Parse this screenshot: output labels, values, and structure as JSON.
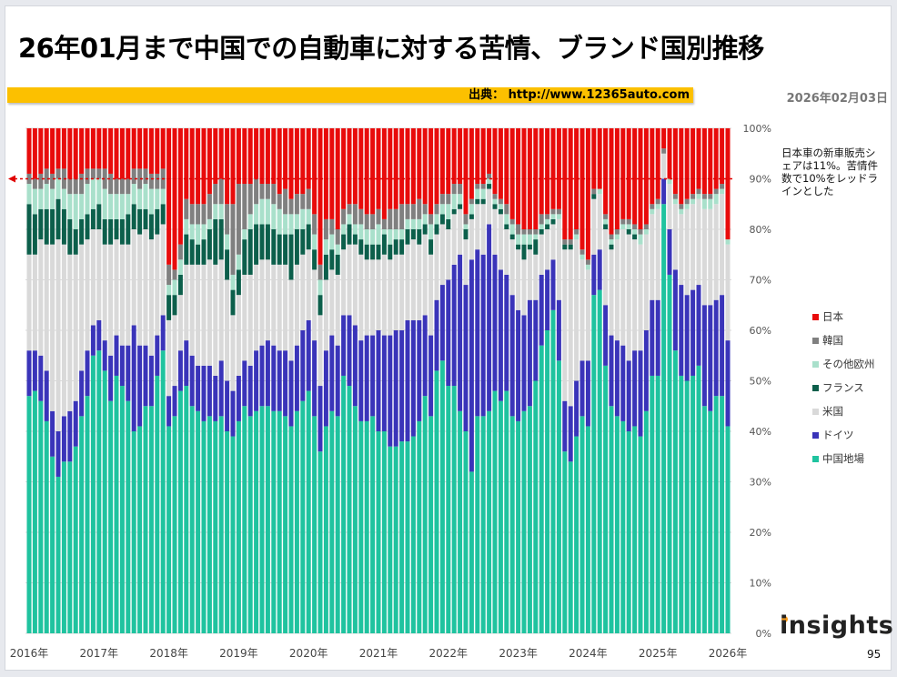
{
  "title": "26年01月まで中国での自動車に対する苦情、ブランド国別推移",
  "source": "出典： http://www.12365auto.com",
  "date": "2026年02月03日",
  "note": "日本車の新車販売シェアは11%。苦情件数で10%をレッドラインとした",
  "page_number": "95",
  "logo_text": "insights",
  "chart_data": {
    "type": "bar",
    "stacked": true,
    "normalized": true,
    "title": "26年01月まで中国での自動車に対する苦情、ブランド国別推移",
    "xlabel": "",
    "ylabel": "",
    "ylim": [
      0,
      100
    ],
    "grid": true,
    "legend_position": "right",
    "period": "2016-01 to 2026-01 (monthly)",
    "x_tick_labels": [
      "2016年",
      "2017年",
      "2018年",
      "2019年",
      "2020年",
      "2021年",
      "2022年",
      "2023年",
      "2024年",
      "2025年",
      "2026年"
    ],
    "y_tick_labels": [
      "0%",
      "10%",
      "20%",
      "30%",
      "40%",
      "50%",
      "60%",
      "70%",
      "80%",
      "90%",
      "100%"
    ],
    "reference_line": {
      "value": 90,
      "color": "#e00000",
      "style": "dashed"
    },
    "series": [
      {
        "name": "中国地場",
        "color": "#1fc39f",
        "values": [
          47,
          48,
          46,
          42,
          35,
          31,
          34,
          34,
          37,
          43,
          47,
          55,
          56,
          52,
          46,
          51,
          49,
          46,
          40,
          41,
          45,
          45,
          51,
          56,
          41,
          43,
          48,
          49,
          45,
          44,
          42,
          43,
          42,
          43,
          40,
          39,
          42,
          45,
          43,
          44,
          45,
          45,
          44,
          44,
          43,
          41,
          44,
          46,
          48,
          43,
          36,
          41,
          44,
          43,
          51,
          49,
          45,
          42,
          42,
          43,
          40,
          40,
          37,
          37,
          38,
          38,
          39,
          42,
          47,
          43,
          52,
          54,
          49,
          49,
          44,
          40,
          32,
          43,
          43,
          44,
          48,
          46,
          48,
          43,
          42,
          44,
          45,
          50,
          57,
          60,
          64,
          54,
          36,
          34,
          39,
          43,
          41,
          67,
          68,
          53,
          45,
          43,
          42,
          40,
          41,
          39,
          44,
          51,
          51,
          85,
          71,
          56,
          51,
          50,
          51,
          53,
          45,
          44,
          47,
          47,
          41
        ]
      },
      {
        "name": "ドイツ",
        "color": "#3a34b9",
        "values": [
          9,
          8,
          9,
          10,
          9,
          9,
          9,
          10,
          9,
          9,
          9,
          6,
          6,
          6,
          9,
          8,
          8,
          11,
          21,
          16,
          12,
          10,
          8,
          7,
          6,
          6,
          8,
          9,
          10,
          9,
          11,
          10,
          9,
          11,
          10,
          9,
          9,
          9,
          10,
          12,
          12,
          13,
          13,
          12,
          13,
          13,
          13,
          14,
          14,
          15,
          13,
          15,
          15,
          14,
          12,
          14,
          16,
          16,
          17,
          16,
          20,
          19,
          22,
          23,
          22,
          24,
          23,
          20,
          16,
          16,
          14,
          15,
          21,
          24,
          31,
          29,
          42,
          33,
          32,
          37,
          27,
          26,
          23,
          24,
          22,
          19,
          21,
          16,
          14,
          12,
          10,
          12,
          10,
          11,
          11,
          11,
          13,
          8,
          8,
          12,
          14,
          15,
          15,
          14,
          15,
          17,
          16,
          15,
          15,
          5,
          9,
          16,
          18,
          17,
          17,
          16,
          20,
          21,
          19,
          20,
          17
        ]
      },
      {
        "name": "米国",
        "color": "#d9d9d9",
        "values": [
          19,
          19,
          23,
          25,
          33,
          38,
          34,
          31,
          29,
          25,
          22,
          19,
          18,
          19,
          22,
          19,
          20,
          20,
          19,
          22,
          23,
          23,
          20,
          18,
          15,
          14,
          11,
          15,
          18,
          20,
          20,
          21,
          22,
          20,
          20,
          15,
          16,
          17,
          18,
          17,
          17,
          16,
          16,
          17,
          17,
          16,
          16,
          15,
          14,
          14,
          14,
          14,
          13,
          14,
          13,
          14,
          16,
          17,
          15,
          15,
          14,
          16,
          15,
          15,
          15,
          15,
          16,
          15,
          16,
          16,
          13,
          12,
          10,
          10,
          9,
          9,
          8,
          9,
          10,
          7,
          9,
          11,
          9,
          11,
          12,
          11,
          10,
          9,
          8,
          8,
          7,
          16,
          30,
          31,
          28,
          20,
          18,
          11,
          11,
          15,
          17,
          20,
          23,
          25,
          22,
          21,
          19,
          17,
          18,
          5,
          9,
          13,
          14,
          17,
          17,
          17,
          19,
          19,
          19,
          20,
          19
        ]
      },
      {
        "name": "フランス",
        "color": "#0c5f4b",
        "values": [
          10,
          8,
          6,
          7,
          7,
          8,
          7,
          7,
          5,
          5,
          5,
          4,
          5,
          5,
          5,
          4,
          5,
          6,
          5,
          5,
          4,
          5,
          5,
          4,
          5,
          4,
          4,
          6,
          5,
          4,
          5,
          6,
          9,
          8,
          6,
          5,
          5,
          7,
          9,
          8,
          7,
          7,
          7,
          6,
          6,
          9,
          7,
          5,
          5,
          4,
          4,
          5,
          4,
          4,
          3,
          4,
          2,
          3,
          3,
          3,
          3,
          4,
          3,
          3,
          3,
          3,
          2,
          3,
          2,
          3,
          2,
          2,
          2,
          1,
          1,
          2,
          1,
          1,
          1,
          1,
          1,
          1,
          1,
          1,
          1,
          3,
          1,
          3,
          1,
          1,
          1,
          0,
          1,
          1,
          0,
          0,
          0,
          1,
          0,
          1,
          1,
          0,
          0,
          1,
          1,
          0,
          0,
          0,
          0,
          0,
          0,
          0,
          0,
          0,
          0,
          0,
          0,
          0,
          0,
          0,
          0
        ]
      },
      {
        "name": "その他欧州",
        "color": "#a9e0cb",
        "values": [
          4,
          5,
          4,
          5,
          4,
          4,
          4,
          5,
          7,
          5,
          6,
          6,
          5,
          6,
          5,
          5,
          5,
          4,
          4,
          4,
          5,
          5,
          4,
          3,
          2,
          3,
          3,
          3,
          3,
          4,
          3,
          2,
          3,
          3,
          3,
          3,
          3,
          2,
          3,
          4,
          5,
          5,
          5,
          5,
          4,
          4,
          3,
          4,
          3,
          3,
          3,
          3,
          3,
          2,
          2,
          2,
          2,
          3,
          3,
          3,
          4,
          1,
          3,
          2,
          2,
          2,
          2,
          2,
          2,
          3,
          2,
          2,
          3,
          3,
          2,
          1,
          2,
          2,
          2,
          1,
          1,
          1,
          2,
          2,
          2,
          2,
          2,
          1,
          1,
          1,
          1,
          1,
          0,
          0,
          1,
          1,
          1,
          0,
          1,
          1,
          1,
          1,
          1,
          1,
          1,
          2,
          1,
          1,
          1,
          0,
          1,
          1,
          1,
          1,
          1,
          1,
          2,
          2,
          2,
          1,
          1
        ]
      },
      {
        "name": "韓国",
        "color": "#808080",
        "values": [
          2,
          2,
          3,
          3,
          3,
          2,
          4,
          3,
          3,
          4,
          3,
          2,
          2,
          4,
          4,
          3,
          3,
          3,
          3,
          4,
          3,
          3,
          3,
          4,
          4,
          2,
          3,
          4,
          4,
          4,
          4,
          5,
          4,
          5,
          6,
          14,
          14,
          9,
          6,
          5,
          3,
          3,
          4,
          3,
          5,
          3,
          4,
          3,
          4,
          4,
          3,
          4,
          3,
          3,
          3,
          2,
          4,
          3,
          3,
          3,
          3,
          2,
          4,
          4,
          5,
          3,
          3,
          4,
          2,
          2,
          2,
          2,
          2,
          2,
          2,
          2,
          1,
          1,
          1,
          1,
          1,
          1,
          2,
          1,
          2,
          1,
          1,
          1,
          2,
          1,
          1,
          1,
          1,
          1,
          1,
          1,
          1,
          1,
          0,
          1,
          1,
          1,
          1,
          1,
          1,
          1,
          1,
          1,
          1,
          1,
          0,
          1,
          1,
          1,
          1,
          1,
          1,
          1,
          1,
          1,
          0
        ]
      },
      {
        "name": "日本",
        "color": "#e80b0b",
        "values": [
          9,
          10,
          9,
          8,
          9,
          8,
          8,
          10,
          10,
          9,
          8,
          8,
          8,
          8,
          9,
          10,
          10,
          10,
          8,
          8,
          8,
          9,
          9,
          8,
          27,
          28,
          23,
          14,
          15,
          15,
          15,
          13,
          11,
          10,
          15,
          15,
          11,
          11,
          11,
          10,
          11,
          11,
          11,
          13,
          12,
          14,
          13,
          13,
          12,
          17,
          27,
          18,
          18,
          20,
          16,
          15,
          15,
          16,
          17,
          17,
          16,
          18,
          16,
          16,
          15,
          15,
          15,
          14,
          15,
          17,
          15,
          13,
          13,
          11,
          11,
          17,
          14,
          11,
          11,
          9,
          13,
          14,
          15,
          18,
          19,
          20,
          20,
          20,
          17,
          17,
          16,
          16,
          22,
          22,
          20,
          24,
          26,
          12,
          12,
          17,
          21,
          20,
          18,
          18,
          19,
          20,
          19,
          15,
          14,
          4,
          10,
          13,
          15,
          14,
          13,
          12,
          13,
          13,
          12,
          11,
          22
        ]
      }
    ],
    "legend_order": [
      "日本",
      "韓国",
      "その他欧州",
      "フランス",
      "米国",
      "ドイツ",
      "中国地場"
    ]
  }
}
